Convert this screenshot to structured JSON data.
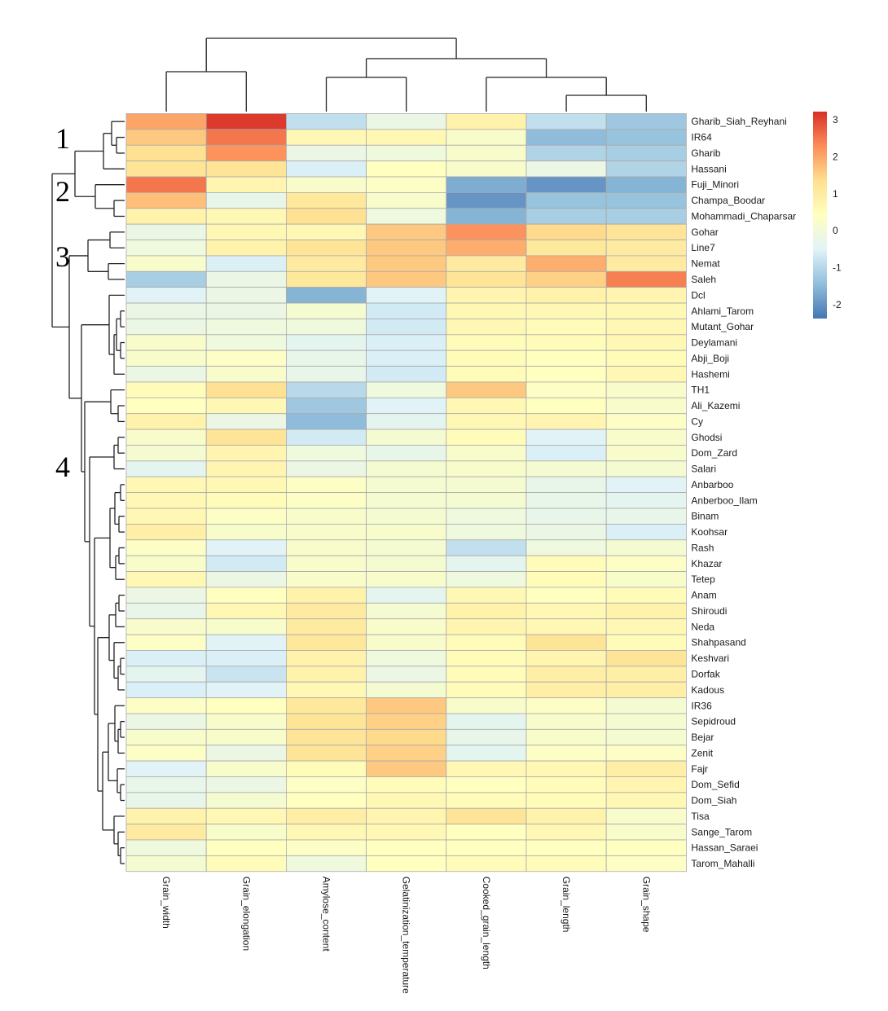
{
  "chart_data": {
    "type": "heatmap",
    "columns": [
      "Grain_width",
      "Grain_elongation",
      "Amylose_content",
      "Gelatinization_temperature",
      "Cooked_grain_length",
      "Grain_length",
      "Grain_shape"
    ],
    "rows": [
      "Gharib_Siah_Reyhani",
      "IR64",
      "Gharib",
      "Hassani",
      "Fuji_Minori",
      "Champa_Boodar",
      "Mohammadi_Chaparsar",
      "Gohar",
      "Line7",
      "Nemat",
      "Saleh",
      "Dcl",
      "Ahlami_Tarom",
      "Mutant_Gohar",
      "Deylamani",
      "Abji_Boji",
      "Hashemi",
      "TH1",
      "Ali_Kazemi",
      "Cy",
      "Ghodsi",
      "Dom_Zard",
      "Salari",
      "Anbarboo",
      "Anberboo_Ilam",
      "Binam",
      "Koohsar",
      "Rash",
      "Khazar",
      "Tetep",
      "Anam",
      "Shiroudi",
      "Neda",
      "Shahpasand",
      "Keshvari",
      "Dorfak",
      "Kadous",
      "IR36",
      "Sepidroud",
      "Bejar",
      "Zenit",
      "Fajr",
      "Dom_Sefid",
      "Dom_Siah",
      "Tisa",
      "Sange_Tarom",
      "Hassan_Saraei",
      "Tarom_Mahalli"
    ],
    "values": [
      [
        2.0,
        3.1,
        -0.9,
        -0.2,
        0.8,
        -0.9,
        -1.3
      ],
      [
        1.6,
        2.5,
        0.6,
        0.6,
        0.2,
        -1.5,
        -1.4
      ],
      [
        1.3,
        2.2,
        -0.2,
        -0.1,
        0.2,
        -1.1,
        -1.2
      ],
      [
        1.2,
        1.2,
        -0.6,
        0.4,
        0.2,
        -0.2,
        -1.1
      ],
      [
        2.5,
        0.7,
        0.2,
        0.3,
        -1.7,
        -2.0,
        -1.6
      ],
      [
        1.7,
        -0.3,
        1.1,
        0.2,
        -2.0,
        -1.4,
        -1.4
      ],
      [
        0.8,
        0.6,
        1.3,
        -0.1,
        -1.6,
        -1.2,
        -1.2
      ],
      [
        -0.2,
        0.6,
        0.6,
        1.6,
        2.2,
        1.4,
        1.2
      ],
      [
        -0.1,
        0.8,
        1.2,
        1.6,
        1.9,
        1.1,
        1.0
      ],
      [
        0.2,
        -0.6,
        1.0,
        1.6,
        1.0,
        1.9,
        1.0
      ],
      [
        -1.2,
        -0.2,
        1.1,
        1.6,
        1.2,
        1.5,
        2.4
      ],
      [
        -0.5,
        -0.2,
        -1.6,
        -0.5,
        0.7,
        0.8,
        0.7
      ],
      [
        -0.2,
        -0.2,
        0.1,
        -0.7,
        0.6,
        0.6,
        0.6
      ],
      [
        -0.2,
        -0.1,
        -0.1,
        -0.7,
        0.6,
        0.5,
        0.6
      ],
      [
        0.2,
        -0.1,
        -0.4,
        -0.6,
        0.5,
        0.5,
        0.6
      ],
      [
        0.2,
        0.3,
        -0.3,
        -0.6,
        0.5,
        0.4,
        0.5
      ],
      [
        -0.2,
        0.2,
        -0.3,
        -0.7,
        0.5,
        0.4,
        0.6
      ],
      [
        0.5,
        1.3,
        -1.0,
        -0.1,
        1.6,
        0.3,
        0.2
      ],
      [
        0.4,
        0.6,
        -1.3,
        -0.5,
        0.6,
        0.4,
        0.2
      ],
      [
        0.8,
        -0.2,
        -1.5,
        -0.4,
        0.6,
        0.7,
        0.3
      ],
      [
        0.2,
        1.2,
        -0.7,
        0.1,
        0.5,
        -0.5,
        0.2
      ],
      [
        0.1,
        0.7,
        -0.1,
        -0.3,
        0.2,
        -0.6,
        0.2
      ],
      [
        -0.4,
        0.7,
        -0.2,
        0.1,
        0.2,
        0.1,
        0.1
      ],
      [
        0.6,
        0.6,
        0.3,
        0.1,
        0.1,
        -0.3,
        -0.5
      ],
      [
        0.6,
        0.5,
        0.3,
        0.1,
        0.1,
        -0.3,
        -0.4
      ],
      [
        0.6,
        0.3,
        0.2,
        0.1,
        -0.1,
        -0.3,
        -0.3
      ],
      [
        0.9,
        0.2,
        0.2,
        0.2,
        -0.1,
        -0.2,
        -0.6
      ],
      [
        0.3,
        -0.5,
        0.2,
        0.1,
        -0.9,
        -0.1,
        0.1
      ],
      [
        0.2,
        -0.7,
        0.2,
        0.1,
        -0.4,
        0.5,
        0.3
      ],
      [
        0.6,
        -0.2,
        0.2,
        0.2,
        -0.1,
        0.5,
        0.2
      ],
      [
        -0.2,
        0.4,
        0.8,
        -0.4,
        0.6,
        0.4,
        0.5
      ],
      [
        -0.3,
        0.6,
        1.0,
        0.1,
        0.8,
        0.6,
        0.8
      ],
      [
        0.2,
        0.2,
        1.0,
        0.2,
        0.7,
        0.6,
        0.6
      ],
      [
        0.3,
        -0.5,
        1.1,
        0.2,
        0.5,
        1.2,
        0.5
      ],
      [
        -0.6,
        -0.6,
        0.8,
        -0.1,
        0.5,
        0.7,
        1.2
      ],
      [
        -0.4,
        -0.8,
        0.8,
        -0.2,
        0.5,
        0.9,
        0.9
      ],
      [
        -0.6,
        -0.5,
        0.6,
        0.1,
        0.5,
        0.9,
        0.9
      ],
      [
        0.3,
        0.4,
        1.1,
        1.6,
        0.2,
        0.3,
        0.1
      ],
      [
        -0.2,
        0.2,
        1.2,
        1.5,
        -0.4,
        0.2,
        0.1
      ],
      [
        0.2,
        0.2,
        1.2,
        1.4,
        -0.3,
        0.2,
        0.1
      ],
      [
        0.3,
        -0.2,
        1.2,
        1.5,
        -0.4,
        0.3,
        0.3
      ],
      [
        -0.5,
        0.2,
        0.5,
        1.6,
        0.6,
        0.6,
        0.9
      ],
      [
        -0.3,
        -0.2,
        0.3,
        0.5,
        0.4,
        0.5,
        0.7
      ],
      [
        -0.3,
        0.1,
        0.4,
        0.6,
        0.5,
        0.5,
        0.6
      ],
      [
        0.8,
        0.6,
        0.9,
        0.7,
        1.2,
        0.8,
        0.2
      ],
      [
        1.0,
        0.2,
        0.6,
        0.6,
        0.4,
        0.6,
        0.2
      ],
      [
        -0.1,
        0.4,
        0.3,
        0.4,
        0.4,
        0.4,
        0.4
      ],
      [
        0.1,
        0.5,
        -0.1,
        0.4,
        0.5,
        0.5,
        0.3
      ]
    ],
    "legend": {
      "ticks": [
        "3",
        "2",
        "1",
        "0",
        "-1",
        "-2"
      ],
      "range": [
        -2.4,
        3.2
      ],
      "colors": [
        "#4575b4",
        "#91bfdb",
        "#e0f3f8",
        "#ffffbf",
        "#fee090",
        "#fc8d59",
        "#d73027"
      ]
    },
    "cluster_labels": [
      "1",
      "2",
      "3",
      "4"
    ]
  }
}
